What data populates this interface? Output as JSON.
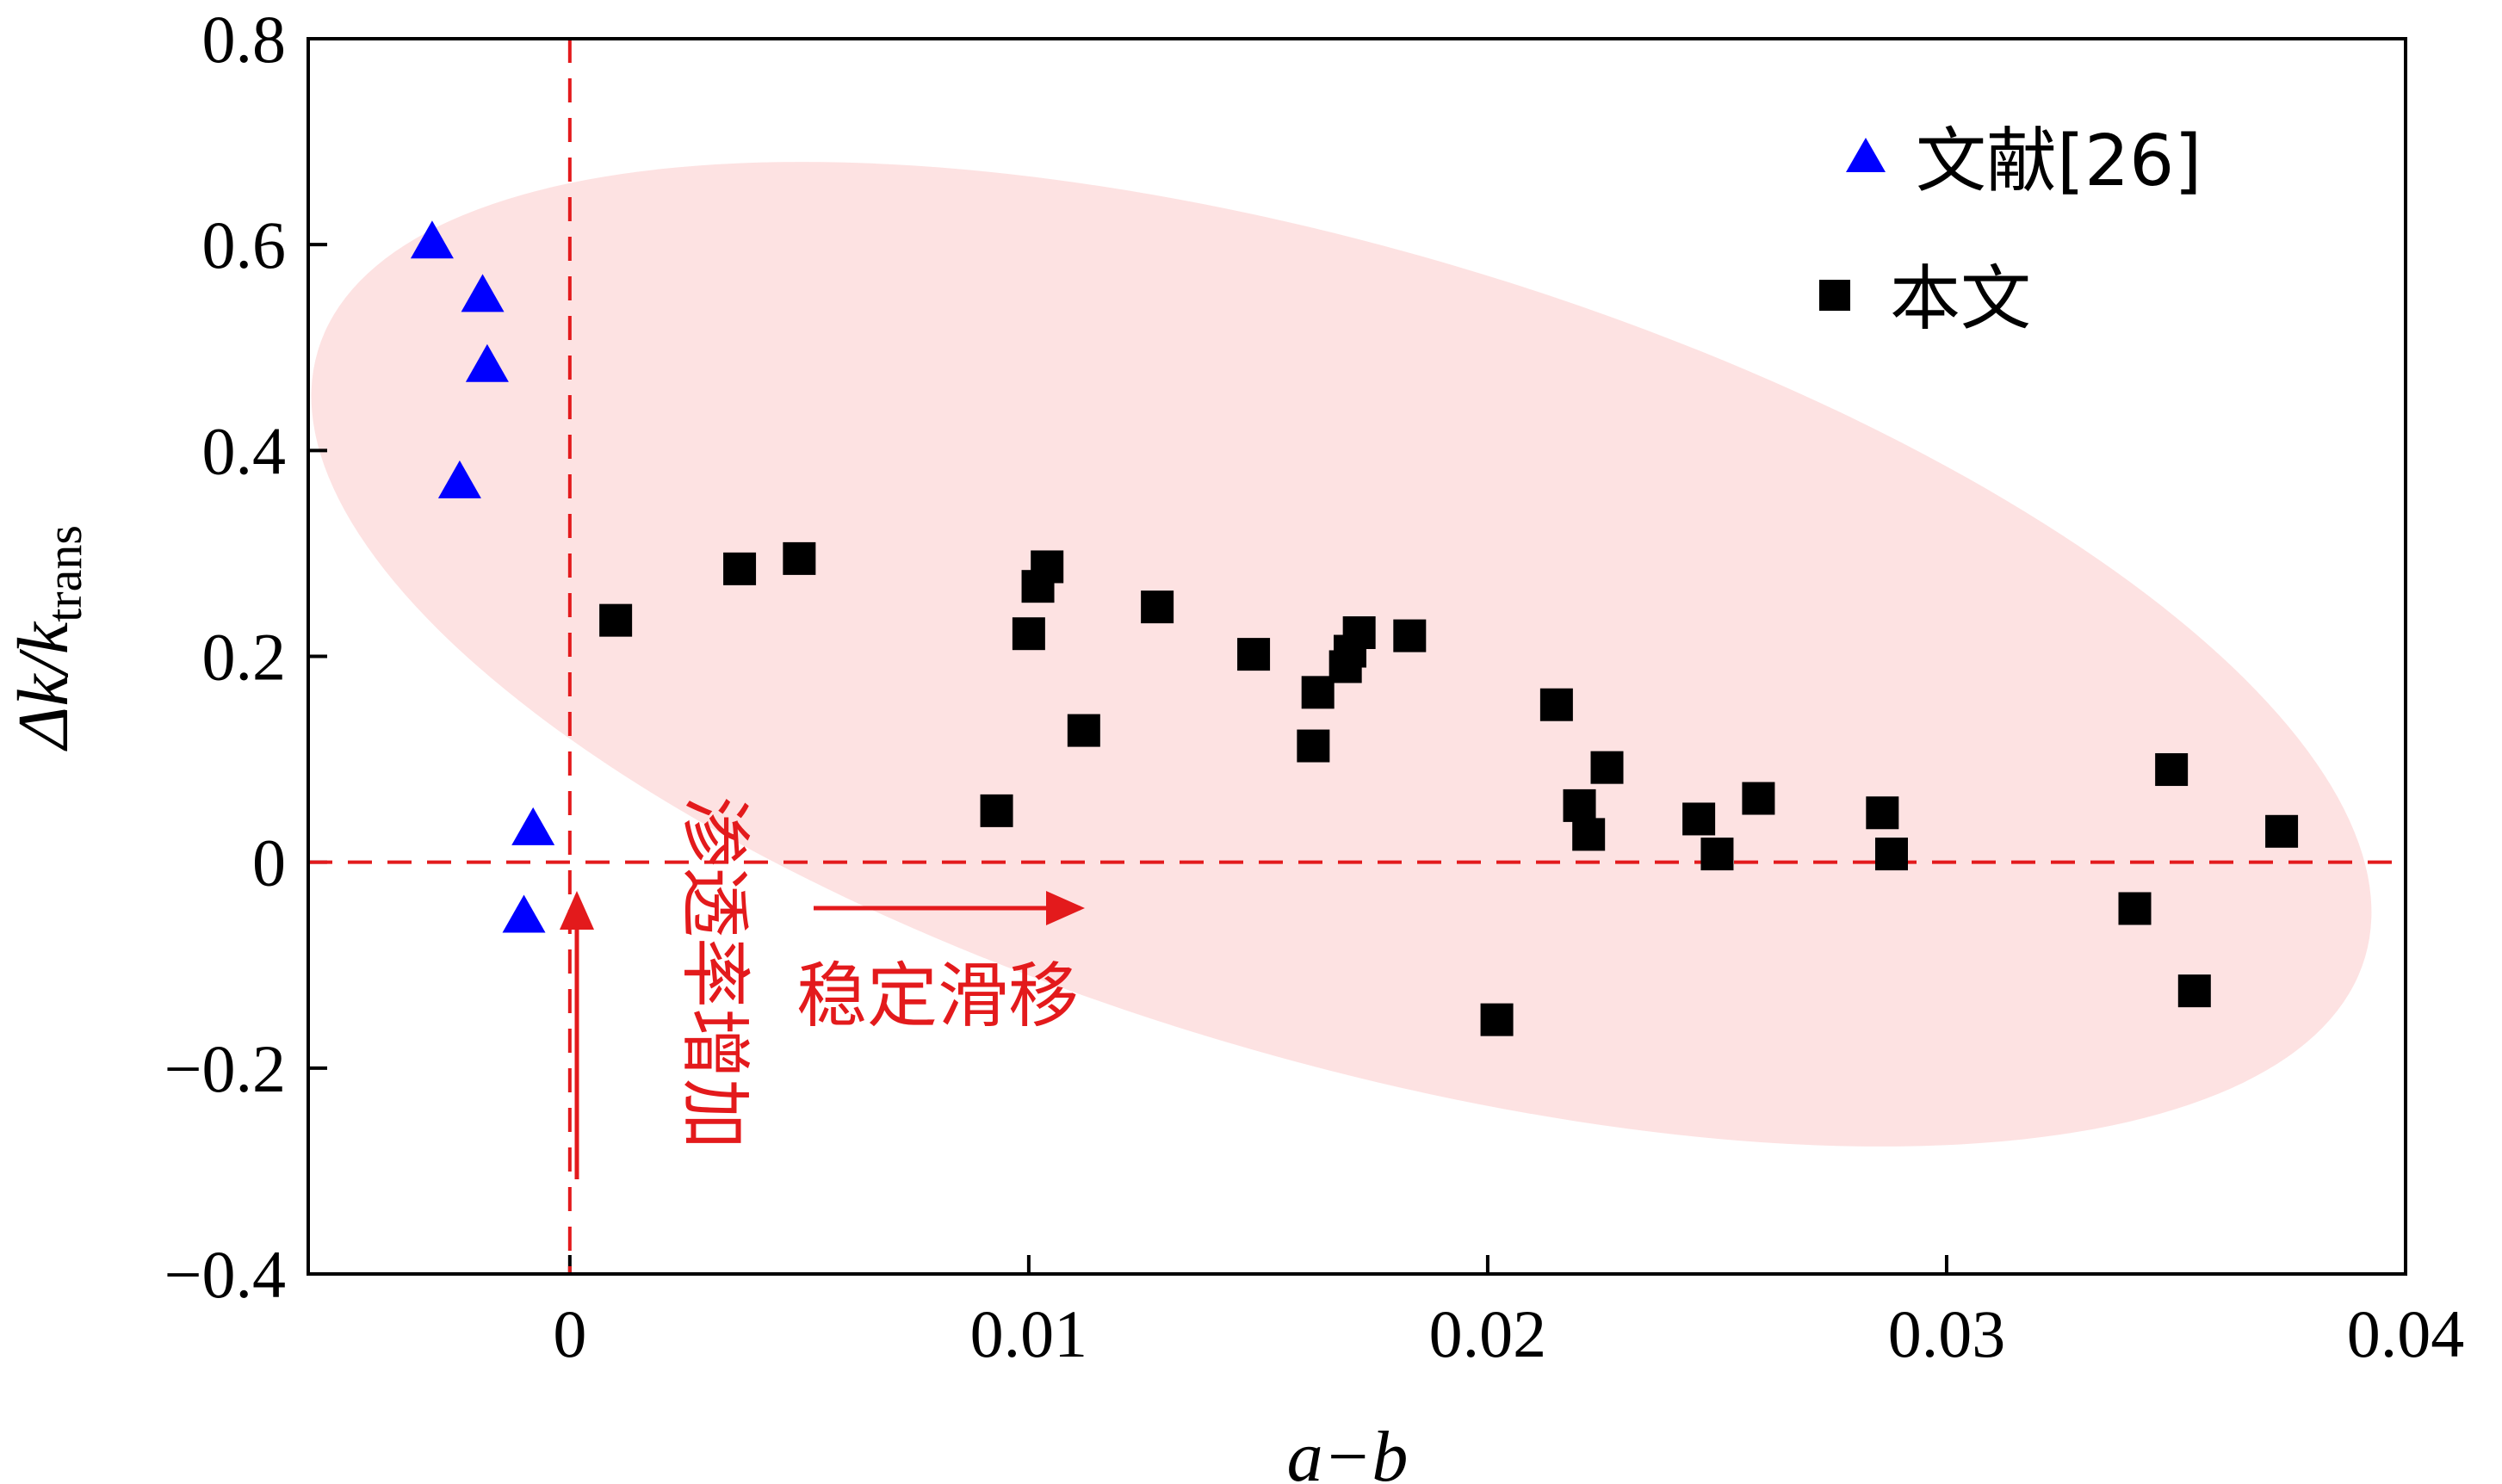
{
  "chart_data": {
    "type": "scatter",
    "xlabel": "a−b",
    "ylabel_main": "Δk/k",
    "ylabel_sub": "trans",
    "xlim": [
      -0.0057,
      0.04
    ],
    "ylim": [
      -0.4,
      0.8
    ],
    "xticks": [
      0,
      0.01,
      0.02,
      0.03,
      0.04
    ],
    "xtick_labels": [
      "0",
      "0.01",
      "0.02",
      "0.03",
      "0.04"
    ],
    "yticks": [
      -0.4,
      -0.2,
      0,
      0.2,
      0.4,
      0.6,
      0.8
    ],
    "ytick_labels": [
      "−0.4",
      "−0.2",
      "0",
      "0.2",
      "0.4",
      "0.6",
      "0.8"
    ],
    "grid": false,
    "legend_position": "top-right",
    "reference_lines": {
      "x": 0,
      "y": 0,
      "color": "#e31a1c",
      "style": "dashed"
    },
    "region": {
      "shape": "ellipse",
      "color": "#fde2e2",
      "center": [
        0.017,
        0.21
      ],
      "note": "shaded elliptical zone"
    },
    "series": [
      {
        "name": "文献[26]",
        "marker": "triangle",
        "color": "#0000ff",
        "points": [
          [
            -0.003,
            0.605
          ],
          [
            -0.0019,
            0.553
          ],
          [
            -0.0018,
            0.485
          ],
          [
            -0.0024,
            0.372
          ],
          [
            -0.0008,
            0.035
          ],
          [
            -0.001,
            -0.05
          ]
        ]
      },
      {
        "name": "本文",
        "marker": "square",
        "color": "#000000",
        "points": [
          [
            0.001,
            0.235
          ],
          [
            0.0037,
            0.285
          ],
          [
            0.005,
            0.295
          ],
          [
            0.0093,
            0.05
          ],
          [
            0.01,
            0.222
          ],
          [
            0.0102,
            0.268
          ],
          [
            0.0104,
            0.287
          ],
          [
            0.0112,
            0.128
          ],
          [
            0.0128,
            0.248
          ],
          [
            0.0149,
            0.202
          ],
          [
            0.0162,
            0.113
          ],
          [
            0.0163,
            0.165
          ],
          [
            0.0169,
            0.19
          ],
          [
            0.017,
            0.205
          ],
          [
            0.0172,
            0.223
          ],
          [
            0.0183,
            0.22
          ],
          [
            0.0202,
            -0.153
          ],
          [
            0.0215,
            0.153
          ],
          [
            0.022,
            0.055
          ],
          [
            0.0222,
            0.027
          ],
          [
            0.0226,
            0.092
          ],
          [
            0.0246,
            0.042
          ],
          [
            0.025,
            0.008
          ],
          [
            0.0259,
            0.062
          ],
          [
            0.0286,
            0.048
          ],
          [
            0.0288,
            0.008
          ],
          [
            0.0341,
            -0.045
          ],
          [
            0.0349,
            0.09
          ],
          [
            0.0354,
            -0.125
          ],
          [
            0.0373,
            0.03
          ]
        ]
      }
    ],
    "annotations": [
      {
        "text": "稳定滑移",
        "arrow": "right",
        "color": "#e31a1c"
      },
      {
        "text": "渗透率增加",
        "arrow": "up",
        "color": "#e31a1c"
      }
    ]
  }
}
